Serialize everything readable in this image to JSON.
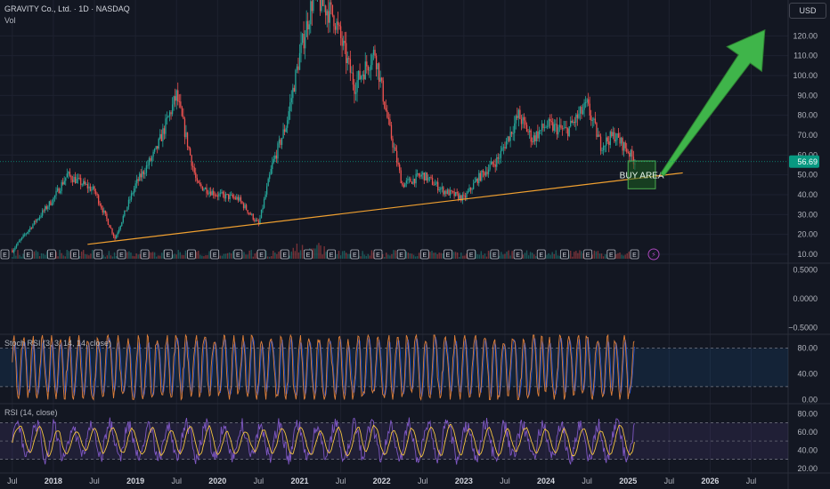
{
  "header": {
    "symbol_line": "GRAVITY Co., Ltd. · 1D · NASDAQ",
    "vol_label": "Vol"
  },
  "currency_button": "USD",
  "last_price_label": "56.69",
  "colors": {
    "background": "#131722",
    "grid": "#1e2230",
    "candle_up": "#26a69a",
    "candle_down": "#ef5350",
    "trendline": "#f0a030",
    "buy_area_fill": "#1b5e20",
    "buy_area_border": "#4caf50",
    "arrow": "#3fb54a",
    "stoch_k": "#e0803a",
    "stoch_d": "#2962ff",
    "rsi_line": "#7e57c2",
    "rsi_ma": "#f5c542",
    "price_tag": "#089981"
  },
  "annotations": {
    "buy_area_label": "BUY AREA",
    "earnings_marker": "E",
    "lightning_marker": "⚡"
  },
  "chart_data": [
    {
      "type": "line",
      "pane": "price",
      "title": "GRAVITY Co., Ltd. · 1D · NASDAQ",
      "x_axis_ticks": [
        "Jul",
        "2018",
        "Jul",
        "2019",
        "Jul",
        "2020",
        "Jul",
        "2021",
        "Jul",
        "2022",
        "Jul",
        "2023",
        "Jul",
        "2024",
        "Jul",
        "2025",
        "Jul",
        "2026",
        "Jul"
      ],
      "x": [
        "2017-07",
        "2018-01",
        "2018-03",
        "2018-07",
        "2018-10",
        "2019-01",
        "2019-04",
        "2019-07",
        "2019-10",
        "2020-01",
        "2020-04",
        "2020-07",
        "2020-09",
        "2020-11",
        "2021-01",
        "2021-03",
        "2021-06",
        "2021-09",
        "2021-12",
        "2022-02",
        "2022-04",
        "2022-07",
        "2022-10",
        "2023-01",
        "2023-03",
        "2023-06",
        "2023-09",
        "2023-11",
        "2024-01",
        "2024-04",
        "2024-07",
        "2024-09",
        "2024-11",
        "2025-01",
        "2025-02"
      ],
      "values": [
        12,
        38,
        50,
        42,
        18,
        45,
        62,
        90,
        45,
        40,
        38,
        25,
        55,
        75,
        110,
        140,
        130,
        95,
        112,
        75,
        45,
        50,
        42,
        38,
        48,
        58,
        80,
        68,
        75,
        72,
        85,
        65,
        70,
        62,
        56.69
      ],
      "y_axis_ticks": [
        10,
        20,
        30,
        40,
        50,
        60,
        70,
        80,
        90,
        100,
        110,
        120
      ],
      "ylim": [
        5,
        135
      ],
      "last_price": 56.69,
      "trendline": {
        "from": {
          "x": "2018-06",
          "y": 15
        },
        "to": {
          "x": "2025-09",
          "y": 51
        }
      },
      "buy_area": {
        "x_from": "2025-01",
        "x_to": "2025-05",
        "y_from": 43,
        "y_to": 57
      },
      "arrow": {
        "from": {
          "x": "2025-06",
          "y": 50
        },
        "to": {
          "x": "2026-09",
          "y": 123
        }
      },
      "earnings_markers_count": 28
    },
    {
      "type": "line",
      "pane": "oscillator",
      "y_axis_ticks": [
        0.5,
        0.0,
        -0.5
      ],
      "y_axis_labels": [
        "0.5000",
        "0.0000",
        "−0.5000"
      ],
      "ylim": [
        -0.6,
        0.6
      ]
    },
    {
      "type": "line",
      "pane": "stoch_rsi",
      "title": "Stoch RSI (3, 3, 14, 14, close)",
      "y_axis_ticks": [
        0,
        40,
        80
      ],
      "y_axis_labels": [
        "0.00",
        "40.00",
        "80.00"
      ],
      "ylim": [
        -5,
        100
      ],
      "band": [
        20,
        80
      ],
      "series": [
        {
          "values_k": "oscillating 0–100 from 2017 to 2025"
        }
      ]
    },
    {
      "type": "line",
      "pane": "rsi",
      "title": "RSI (14, close)",
      "y_axis_ticks": [
        20,
        40,
        60,
        80
      ],
      "y_axis_labels": [
        "20.00",
        "40.00",
        "60.00",
        "80.00"
      ],
      "ylim": [
        15,
        90
      ],
      "band": [
        30,
        70
      ]
    }
  ]
}
